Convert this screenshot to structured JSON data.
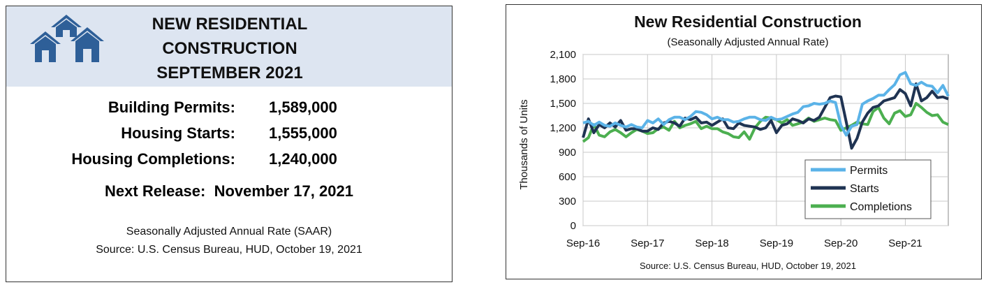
{
  "summary": {
    "title_lines": [
      "NEW RESIDENTIAL",
      "CONSTRUCTION",
      "SEPTEMBER 2021"
    ],
    "stats": [
      {
        "label": "Building Permits:",
        "value": "1,589,000"
      },
      {
        "label": "Housing Starts:",
        "value": "1,555,000"
      },
      {
        "label": "Housing Completions:",
        "value": "1,240,000"
      }
    ],
    "next_release_label": "Next Release:",
    "next_release_date": "November 17, 2021",
    "footnote_lines": [
      "Seasonally Adjusted Annual Rate (SAAR)",
      "Source:  U.S. Census Bureau, HUD, October 19, 2021"
    ],
    "header_color": "#dde5f1",
    "icon": "houses-icon",
    "icon_color": "#2e5f98"
  },
  "chart_data": {
    "type": "line",
    "title": "New Residential Construction",
    "subtitle": "(Seasonally Adjusted Annual Rate)",
    "ylabel": "Thousands of Units",
    "xlabel": "",
    "source": "Source:  U.S. Census Bureau, HUD, October 19, 2021",
    "ylim": [
      0,
      2100
    ],
    "yticks": [
      0,
      300,
      600,
      900,
      1200,
      1500,
      1800,
      2100
    ],
    "ytick_labels": [
      "0",
      "300",
      "600",
      "900",
      "1,200",
      "1,500",
      "1,800",
      "2,100"
    ],
    "xtick_labels": [
      "Sep-16",
      "Sep-17",
      "Sep-18",
      "Sep-19",
      "Sep-20",
      "Sep-21"
    ],
    "x_start": "Sep-16",
    "x_end": "Sep-21",
    "grid": true,
    "legend_position": "bottom-right",
    "series": [
      {
        "name": "Permits",
        "color": "#5bb3e8",
        "values": [
          1260,
          1280,
          1230,
          1270,
          1230,
          1220,
          1260,
          1230,
          1210,
          1240,
          1210,
          1200,
          1290,
          1260,
          1310,
          1240,
          1300,
          1330,
          1330,
          1300,
          1340,
          1400,
          1390,
          1360,
          1310,
          1330,
          1300,
          1300,
          1270,
          1280,
          1310,
          1330,
          1330,
          1300,
          1290,
          1330,
          1300,
          1310,
          1340,
          1370,
          1390,
          1460,
          1470,
          1500,
          1490,
          1500,
          1530,
          1510,
          1230,
          1110,
          1220,
          1240,
          1490,
          1530,
          1560,
          1600,
          1600,
          1670,
          1730,
          1850,
          1880,
          1740,
          1720,
          1760,
          1720,
          1710,
          1630,
          1720,
          1589
        ]
      },
      {
        "name": "Starts",
        "color": "#1f3352",
        "values": [
          1080,
          1310,
          1140,
          1240,
          1200,
          1260,
          1210,
          1290,
          1170,
          1190,
          1190,
          1160,
          1160,
          1200,
          1180,
          1260,
          1280,
          1260,
          1220,
          1320,
          1300,
          1330,
          1260,
          1270,
          1230,
          1270,
          1310,
          1200,
          1190,
          1260,
          1230,
          1220,
          1210,
          1180,
          1200,
          1290,
          1140,
          1230,
          1250,
          1310,
          1290,
          1260,
          1310,
          1290,
          1330,
          1450,
          1570,
          1590,
          1580,
          1270,
          950,
          1070,
          1270,
          1380,
          1450,
          1470,
          1530,
          1550,
          1570,
          1670,
          1620,
          1470,
          1740,
          1530,
          1570,
          1650,
          1570,
          1580,
          1555
        ]
      },
      {
        "name": "Completions",
        "color": "#4caf50",
        "values": [
          1030,
          1080,
          1240,
          1110,
          1090,
          1150,
          1180,
          1140,
          1090,
          1140,
          1180,
          1160,
          1130,
          1140,
          1190,
          1210,
          1170,
          1280,
          1200,
          1230,
          1250,
          1280,
          1190,
          1220,
          1190,
          1190,
          1150,
          1130,
          1090,
          1080,
          1150,
          1060,
          1200,
          1280,
          1330,
          1320,
          1300,
          1260,
          1300,
          1230,
          1250,
          1270,
          1320,
          1280,
          1300,
          1320,
          1300,
          1290,
          1170,
          1200,
          1230,
          1270,
          1250,
          1240,
          1400,
          1450,
          1320,
          1250,
          1380,
          1410,
          1340,
          1360,
          1500,
          1450,
          1390,
          1350,
          1360,
          1270,
          1240
        ]
      }
    ]
  }
}
